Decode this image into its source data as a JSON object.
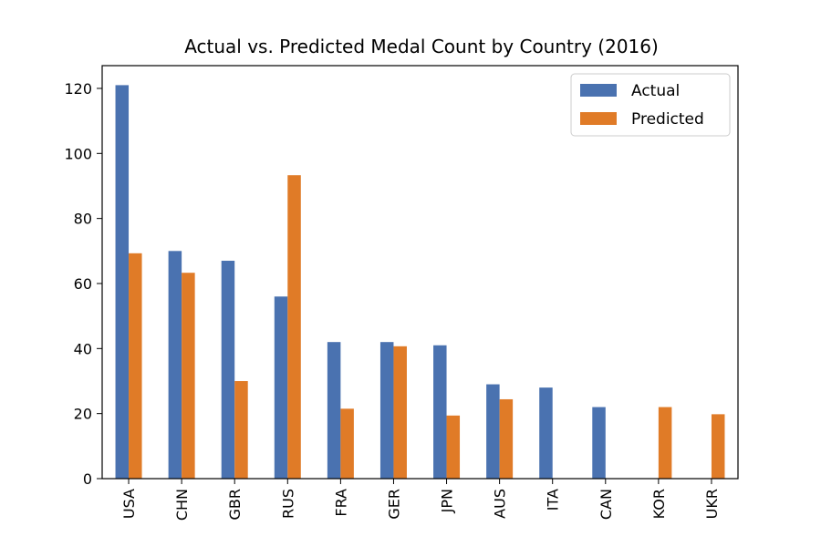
{
  "chart_data": {
    "type": "bar",
    "title": "Actual vs. Predicted Medal Count by Country (2016)",
    "xlabel": "",
    "ylabel": "",
    "categories": [
      "USA",
      "CHN",
      "GBR",
      "RUS",
      "FRA",
      "GER",
      "JPN",
      "AUS",
      "ITA",
      "CAN",
      "KOR",
      "UKR"
    ],
    "series": [
      {
        "name": "Actual",
        "color": "#4a72b0",
        "values": [
          121,
          70,
          67,
          56,
          42,
          42,
          41,
          29,
          28,
          22,
          0,
          0
        ]
      },
      {
        "name": "Predicted",
        "color": "#e07b27",
        "values": [
          69.3,
          63.3,
          30,
          93.3,
          21.5,
          40.7,
          19.4,
          24.4,
          0,
          0,
          22,
          19.8
        ]
      }
    ],
    "ylim": [
      0,
      127
    ],
    "yticks": [
      0,
      20,
      40,
      60,
      80,
      100,
      120
    ],
    "legend": "top-right",
    "grid": false
  }
}
